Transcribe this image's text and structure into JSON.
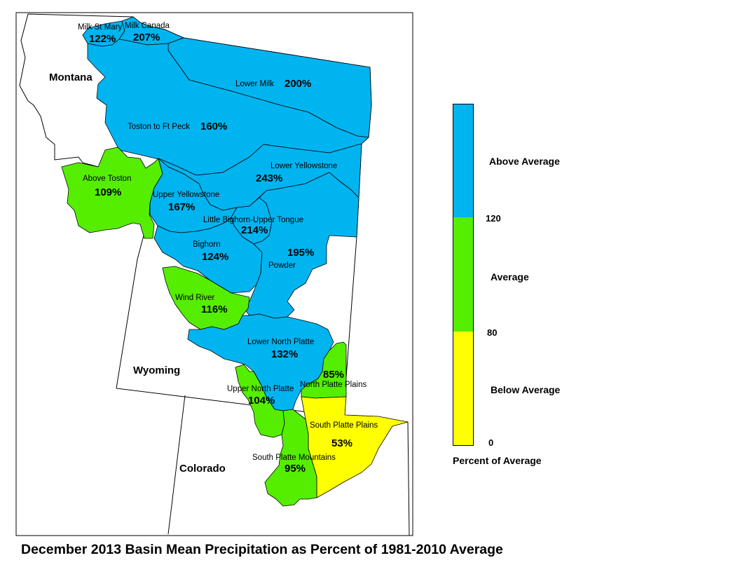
{
  "title": "December 2013 Basin Mean Precipitation as Percent of 1981-2010 Average",
  "colors": {
    "above": "#00b4f0",
    "average": "#55ee00",
    "below": "#ffff00",
    "outline": "#000000"
  },
  "states": [
    {
      "id": "montana",
      "name": "Montana"
    },
    {
      "id": "wyoming",
      "name": "Wyoming"
    },
    {
      "id": "colorado",
      "name": "Colorado"
    }
  ],
  "basins": [
    {
      "id": "milk-st-mary",
      "name": "Milk St Mary",
      "percent": "122%",
      "category": "above"
    },
    {
      "id": "milk-canada",
      "name": "Milk Canada",
      "percent": "207%",
      "category": "above"
    },
    {
      "id": "lower-milk",
      "name": "Lower Milk",
      "percent": "200%",
      "category": "above"
    },
    {
      "id": "toston-to-ft-peck",
      "name": "Toston to Ft Peck",
      "percent": "160%",
      "category": "above"
    },
    {
      "id": "above-toston",
      "name": "Above Toston",
      "percent": "109%",
      "category": "average"
    },
    {
      "id": "lower-yellowstone",
      "name": "Lower Yellowstone",
      "percent": "243%",
      "category": "above"
    },
    {
      "id": "upper-yellowstone",
      "name": "Upper Yellowstone",
      "percent": "167%",
      "category": "above"
    },
    {
      "id": "little-bighorn-upper-tongue",
      "name": "Little Bighorn-Upper Tongue",
      "percent": "214%",
      "category": "above"
    },
    {
      "id": "bighorn",
      "name": "Bighorn",
      "percent": "124%",
      "category": "above"
    },
    {
      "id": "powder",
      "name": "Powder",
      "percent": "195%",
      "category": "above"
    },
    {
      "id": "wind-river",
      "name": "Wind River",
      "percent": "116%",
      "category": "average"
    },
    {
      "id": "lower-north-platte",
      "name": "Lower North Platte",
      "percent": "132%",
      "category": "above"
    },
    {
      "id": "north-platte-plains",
      "name": "North Platte Plains",
      "percent": "85%",
      "category": "average"
    },
    {
      "id": "upper-north-platte",
      "name": "Upper North Platte",
      "percent": "104%",
      "category": "average"
    },
    {
      "id": "south-platte-plains",
      "name": "South Platte Plains",
      "percent": "53%",
      "category": "below"
    },
    {
      "id": "south-platte-mountains",
      "name": "South Platte Mountains",
      "percent": "95%",
      "category": "average"
    }
  ],
  "legend": {
    "classes": {
      "above": "Above Average",
      "average": "Average",
      "below": "Below Average"
    },
    "ticks": [
      "120",
      "80",
      "0"
    ],
    "caption": "Percent of Average"
  }
}
